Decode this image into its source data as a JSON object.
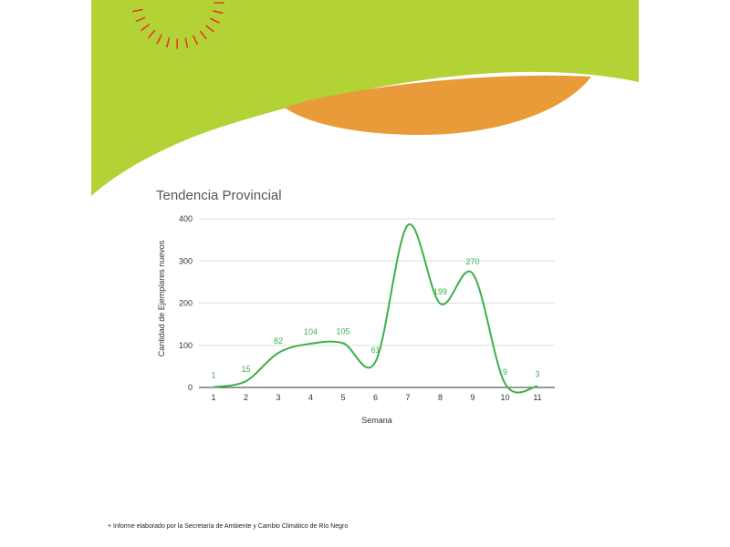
{
  "colors": {
    "green_band": "#b2d235",
    "orange_shape": "#e99b3a",
    "sun_rays": "#e5382f",
    "line": "#3cb04a",
    "grid": "#dddddd",
    "axis": "#333333",
    "text": "#555555"
  },
  "page": {
    "footnote": "+ Informe elaborado por la Secretaría de Ambiente y Cambio Climático de Río Negro"
  },
  "chart_data": {
    "type": "line",
    "title": "Tendencia Provincial",
    "xlabel": "Semana",
    "ylabel": "Cantidad de Ejemplares nuevos",
    "ylim": [
      0,
      400
    ],
    "yticks": [
      0,
      100,
      200,
      300,
      400
    ],
    "grid": true,
    "smooth": true,
    "categories": [
      "1",
      "2",
      "3",
      "4",
      "5",
      "6",
      "7",
      "8",
      "9",
      "10",
      "11"
    ],
    "series": [
      {
        "name": "Ejemplares nuevos",
        "values": [
          1,
          15,
          82,
          104,
          105,
          61,
          385,
          199,
          270,
          9,
          3
        ]
      }
    ],
    "data_labels": [
      "1",
      "15",
      "82",
      "104",
      "105",
      "61",
      "",
      "199",
      "270",
      "9",
      "3"
    ]
  }
}
